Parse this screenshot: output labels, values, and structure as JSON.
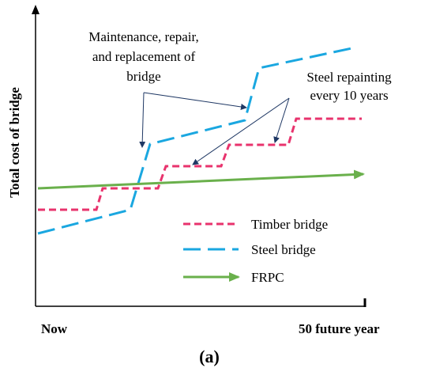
{
  "y_axis_label": "Total cost of bridge",
  "x_labels": [
    "Now",
    "50 future year"
  ],
  "annotations": [
    {
      "lines": [
        "Maintenance, repair,",
        "and replacement of",
        "bridge"
      ]
    },
    {
      "lines": [
        "Steel repainting",
        "every 10 years"
      ]
    }
  ],
  "legend": [
    "Timber bridge",
    "Steel bridge",
    "FRPC"
  ],
  "caption": "(a)"
}
